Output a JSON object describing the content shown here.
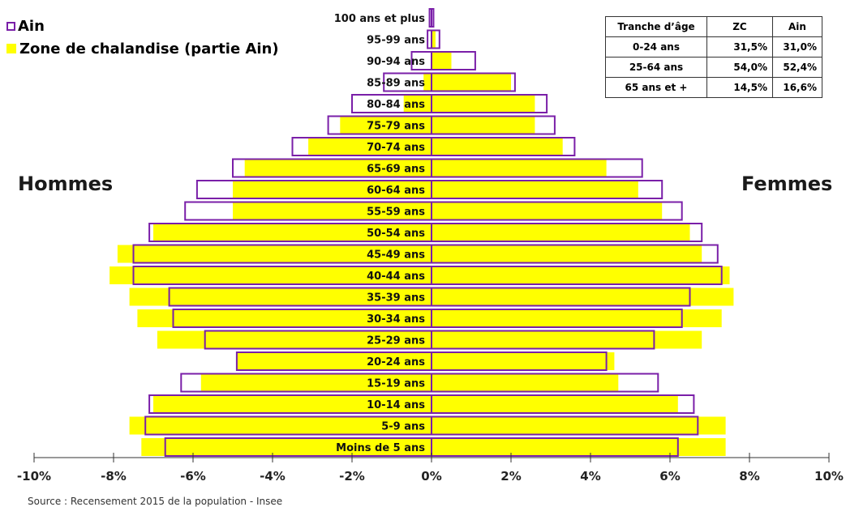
{
  "legend": {
    "ain_label": "Ain",
    "zc_label": "Zone de chalandise (partie Ain)"
  },
  "side_labels": {
    "men": "Hommes",
    "women": "Femmes"
  },
  "source": "Source : Recensement 2015 de la population - Insee",
  "share_table": {
    "headers": [
      "Tranche d’âge",
      "ZC",
      "Ain"
    ],
    "rows": [
      [
        "0-24 ans",
        "31,5%",
        "31,0%"
      ],
      [
        "25-64 ans",
        "54,0%",
        "52,4%"
      ],
      [
        "65 ans et +",
        "14,5%",
        "16,6%"
      ]
    ]
  },
  "colors": {
    "zc_fill": "#ffff00",
    "ain_outline": "#7a1fa8"
  },
  "chart_data": {
    "type": "bar",
    "orientation": "horizontal-pyramid",
    "xlim": [
      -10,
      10
    ],
    "x_ticks": [
      -10,
      -8,
      -6,
      -4,
      -2,
      0,
      2,
      4,
      6,
      8,
      10
    ],
    "x_tick_labels": [
      "-10%",
      "-8%",
      "-6%",
      "-4%",
      "-2%",
      "0%",
      "2%",
      "4%",
      "6%",
      "8%",
      "10%"
    ],
    "categories": [
      "100 ans et plus",
      "95-99 ans",
      "90-94 ans",
      "85-89 ans",
      "80-84 ans",
      "75-79 ans",
      "70-74 ans",
      "65-69 ans",
      "60-64 ans",
      "55-59 ans",
      "50-54 ans",
      "45-49 ans",
      "40-44 ans",
      "35-39 ans",
      "30-34 ans",
      "25-29 ans",
      "20-24 ans",
      "15-19 ans",
      "10-14 ans",
      "5-9 ans",
      "Moins de 5 ans"
    ],
    "series": [
      {
        "name": "Zone de chalandise (partie Ain)",
        "men": [
          0.0,
          0.0,
          0.0,
          0.2,
          0.7,
          2.3,
          3.1,
          4.7,
          5.0,
          5.0,
          7.0,
          7.9,
          8.1,
          7.6,
          7.4,
          6.9,
          4.9,
          5.8,
          7.0,
          7.6,
          7.3
        ],
        "women": [
          0.0,
          0.1,
          0.5,
          2.0,
          2.6,
          2.6,
          3.3,
          4.4,
          5.2,
          5.8,
          6.5,
          6.8,
          7.5,
          7.6,
          7.3,
          6.8,
          4.6,
          4.7,
          6.2,
          7.4,
          7.4
        ]
      },
      {
        "name": "Ain",
        "men": [
          0.05,
          0.1,
          0.5,
          1.2,
          2.0,
          2.6,
          3.5,
          5.0,
          5.9,
          6.2,
          7.1,
          7.5,
          7.5,
          6.6,
          6.5,
          5.7,
          4.9,
          6.3,
          7.1,
          7.2,
          6.7
        ],
        "women": [
          0.05,
          0.2,
          1.1,
          2.1,
          2.9,
          3.1,
          3.6,
          5.3,
          5.8,
          6.3,
          6.8,
          7.2,
          7.3,
          6.5,
          6.3,
          5.6,
          4.4,
          5.7,
          6.6,
          6.7,
          6.2
        ]
      }
    ],
    "legend_position": "top-left"
  }
}
